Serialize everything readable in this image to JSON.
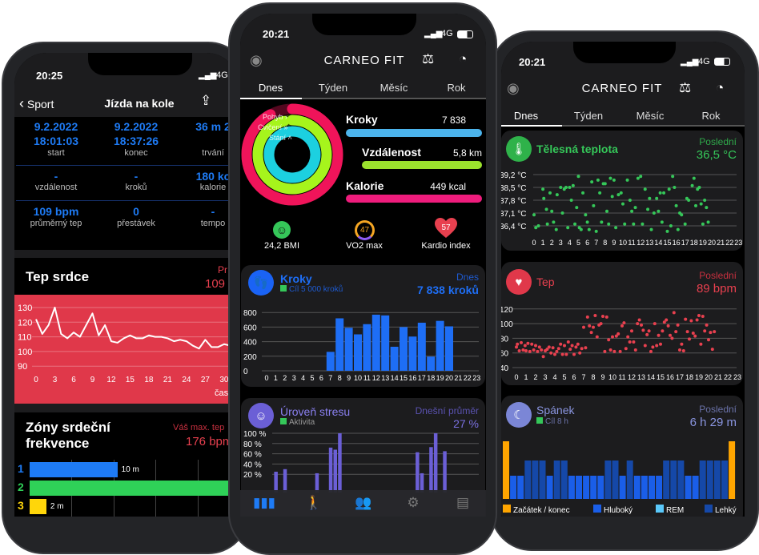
{
  "status": {
    "network": "4G"
  },
  "left_phone": {
    "time": "20:25",
    "back_label": "Sport",
    "title": "Jízda na kole",
    "stats": [
      {
        "value": "9.2.2022",
        "value2": "18:01:03",
        "label": "start"
      },
      {
        "value": "9.2.2022",
        "value2": "18:37:26",
        "label": "konec"
      },
      {
        "value": "36 m 2",
        "value2": "",
        "label": "trvání"
      },
      {
        "value": "-",
        "label": "vzdálenost"
      },
      {
        "value": "-",
        "label": "kroků"
      },
      {
        "value": "180 kc",
        "label": "kalorie"
      },
      {
        "value": "109 bpm",
        "label": "průměrný tep"
      },
      {
        "value": "0",
        "label": "přestávek"
      },
      {
        "value": "-",
        "label": "tempo"
      }
    ],
    "heart": {
      "title": "Tep srdce",
      "right_label": "Pr",
      "right_value": "109"
    },
    "zones": {
      "title1": "Zóny srdeční",
      "title2": "frekvence",
      "right_label": "Váš max. tep",
      "right_value": "176 bpm",
      "rows": [
        {
          "n": "1",
          "label": "10 m",
          "color": "#1e7bf5",
          "fraction": 0.42
        },
        {
          "n": "2",
          "label": "",
          "color": "#2fd158",
          "fraction": 1.0
        },
        {
          "n": "3",
          "label": "2 m",
          "color": "#ffd60a",
          "fraction": 0.08
        }
      ]
    }
  },
  "middle_phone": {
    "time": "20:21",
    "logo": "CARNEO FIT",
    "tabs": [
      "Dnes",
      "Týden",
      "Měsíc",
      "Rok"
    ],
    "rings": {
      "labels": [
        "Pohyb ›",
        "Cvičení »",
        "Stání ˄"
      ]
    },
    "metrics": [
      {
        "label": "Kroky",
        "value": "7 838",
        "color": "#4cb4ec"
      },
      {
        "label": "Vzdálenost",
        "value": "5,8 km",
        "color": "#9be22d"
      },
      {
        "label": "Kalorie",
        "value": "449 kcal",
        "color": "#ee1c7c"
      }
    ],
    "badges": [
      {
        "label": "24,2 BMI"
      },
      {
        "value": "47",
        "label": "VO2 max"
      },
      {
        "value": "57",
        "label": "Kardio index"
      }
    ],
    "steps_card": {
      "title": "Kroky",
      "goal": "Cíl 5 000 kroků",
      "right_label": "Dnes",
      "right_value": "7 838 kroků",
      "color": "#1e6ef5"
    },
    "stress_card": {
      "title": "Úroveň stresu",
      "legend": "Aktivita",
      "right_label": "Dnešní průměr",
      "right_value": "27 %",
      "color": "#6b5fd6"
    },
    "nav": [
      "chart-icon",
      "walking-icon",
      "friends-icon",
      "gear-icon",
      "document-icon"
    ]
  },
  "right_phone": {
    "time": "20:21",
    "logo": "CARNEO FIT",
    "tabs": [
      "Dnes",
      "Týden",
      "Měsíc",
      "Rok"
    ],
    "temp_card": {
      "title": "Tělesná teplota",
      "right_label": "Poslední",
      "right_value": "36,5 °C",
      "color": "#35c759"
    },
    "hr_card": {
      "title": "Tep",
      "right_label": "Poslední",
      "right_value": "89 bpm",
      "color": "#e8404f"
    },
    "sleep_card": {
      "title": "Spánek",
      "goal": "Cíl 8 h",
      "right_label": "Poslední",
      "right_value": "6 h 29 m",
      "color": "#8a95e0",
      "legend": [
        {
          "label": "Začátek / konec",
          "color": "#ffa500"
        },
        {
          "label": "Hluboký",
          "color": "#1a5ee8"
        },
        {
          "label": "REM",
          "color": "#5ac8fa"
        },
        {
          "label": "Lehký",
          "color": "#1548a8"
        }
      ]
    }
  },
  "chart_data": [
    {
      "id": "heart_line",
      "type": "line",
      "xlabel": "čas",
      "yticks": [
        90,
        100,
        110,
        120,
        130
      ],
      "xticks": [
        0,
        3,
        6,
        9,
        12,
        15,
        18,
        21,
        24,
        27,
        30
      ],
      "x": [
        0,
        1,
        2,
        3,
        4,
        5,
        6,
        7,
        8,
        9,
        10,
        11,
        12,
        13,
        14,
        15,
        16,
        17,
        18,
        19,
        20,
        21,
        22,
        23,
        24,
        25,
        26,
        27,
        28,
        29,
        30,
        31
      ],
      "values": [
        122,
        112,
        118,
        130,
        112,
        109,
        113,
        110,
        118,
        126,
        111,
        118,
        107,
        106,
        109,
        111,
        109,
        109,
        111,
        110,
        110,
        109,
        107,
        108,
        107,
        104,
        102,
        108,
        103,
        103,
        105,
        104
      ]
    },
    {
      "id": "steps",
      "type": "bar",
      "ylim": [
        0,
        800
      ],
      "yticks": [
        0,
        200,
        400,
        600,
        800
      ],
      "categories": [
        "0",
        "1",
        "2",
        "3",
        "4",
        "5",
        "6",
        "7",
        "8",
        "9",
        "10",
        "11",
        "12",
        "13",
        "14",
        "15",
        "16",
        "17",
        "18",
        "19",
        "20",
        "21",
        "22",
        "23"
      ],
      "values": [
        0,
        0,
        0,
        0,
        0,
        0,
        0,
        260,
        720,
        590,
        500,
        640,
        770,
        760,
        330,
        600,
        470,
        660,
        195,
        685,
        610,
        0,
        0,
        0
      ]
    },
    {
      "id": "stress",
      "type": "bar",
      "ylim": [
        0,
        100
      ],
      "yticks": [
        "20 %",
        "40 %",
        "60 %",
        "80 %",
        "100 %"
      ],
      "values": [
        0,
        0,
        25,
        0,
        30,
        0,
        0,
        0,
        0,
        0,
        0,
        22,
        0,
        0,
        72,
        68,
        100,
        0,
        0,
        0,
        0,
        0,
        0,
        0,
        0,
        0,
        0,
        0,
        0,
        0,
        0,
        0,
        0,
        63,
        22,
        0,
        73,
        100,
        0,
        65,
        0,
        0,
        0,
        0,
        0,
        0,
        0,
        0
      ]
    },
    {
      "id": "temperature",
      "type": "scatter",
      "yticks": [
        "36,4 °C",
        "37,1 °C",
        "37,8 °C",
        "38,5 °C",
        "39,2 °C"
      ],
      "ylim": [
        36.4,
        39.2
      ],
      "xticks": [
        0,
        1,
        2,
        3,
        4,
        5,
        6,
        7,
        8,
        9,
        10,
        11,
        12,
        13,
        14,
        15,
        16,
        17,
        18,
        19,
        20,
        21,
        22,
        23
      ],
      "points": [
        [
          0,
          37.0
        ],
        [
          0.2,
          36.3
        ],
        [
          0.5,
          36.4
        ],
        [
          1,
          38.4
        ],
        [
          1.1,
          37.9
        ],
        [
          1.4,
          37.3
        ],
        [
          1.5,
          36.5
        ],
        [
          1.8,
          38.2
        ],
        [
          2,
          37.2
        ],
        [
          2.2,
          36.6
        ],
        [
          2.5,
          36.2
        ],
        [
          2.6,
          38.1
        ],
        [
          3,
          38.5
        ],
        [
          3.2,
          37.1
        ],
        [
          3.4,
          38.4
        ],
        [
          3.6,
          38.5
        ],
        [
          3.8,
          36.3
        ],
        [
          4,
          38.5
        ],
        [
          4.2,
          37.8
        ],
        [
          4.4,
          38.6
        ],
        [
          4.6,
          36.5
        ],
        [
          4.8,
          37.4
        ],
        [
          5,
          39.1
        ],
        [
          5.1,
          36.3
        ],
        [
          5.3,
          36.2
        ],
        [
          5.5,
          38.2
        ],
        [
          5.8,
          37.0
        ],
        [
          6,
          36.6
        ],
        [
          6.2,
          36.2
        ],
        [
          6.5,
          38.8
        ],
        [
          6.7,
          37.5
        ],
        [
          7,
          36.1
        ],
        [
          7.2,
          38.9
        ],
        [
          7.4,
          38.2
        ],
        [
          7.6,
          36.6
        ],
        [
          7.8,
          38.7
        ],
        [
          8,
          38.7
        ],
        [
          8.2,
          37.2
        ],
        [
          8.4,
          36.5
        ],
        [
          8.6,
          39.0
        ],
        [
          8.8,
          38.0
        ],
        [
          9,
          38.9
        ],
        [
          9.2,
          36.3
        ],
        [
          9.5,
          38.1
        ],
        [
          9.8,
          38.2
        ],
        [
          10,
          37.6
        ],
        [
          10.2,
          36.5
        ],
        [
          10.5,
          38.9
        ],
        [
          10.8,
          37.8
        ],
        [
          11,
          37.2
        ],
        [
          11.2,
          36.5
        ],
        [
          11.4,
          37.4
        ],
        [
          11.7,
          39.0
        ],
        [
          12,
          39.1
        ],
        [
          12.2,
          36.5
        ],
        [
          12.5,
          38.4
        ],
        [
          12.8,
          37.3
        ],
        [
          13,
          37.9
        ],
        [
          13.2,
          36.2
        ],
        [
          13.5,
          37.1
        ],
        [
          13.8,
          37.9
        ],
        [
          14,
          37.2
        ],
        [
          14.2,
          38.2
        ],
        [
          14.4,
          36.6
        ],
        [
          14.6,
          38.2
        ],
        [
          15,
          36.1
        ],
        [
          15.2,
          38.4
        ],
        [
          15.4,
          36.4
        ],
        [
          15.6,
          39.1
        ],
        [
          15.8,
          38.5
        ],
        [
          16,
          37.5
        ],
        [
          16.2,
          36.2
        ],
        [
          16.4,
          37.1
        ],
        [
          16.6,
          37.0
        ],
        [
          17,
          36.5
        ],
        [
          17.2,
          37.9
        ],
        [
          17.4,
          37.8
        ],
        [
          17.8,
          38.6
        ],
        [
          18,
          39.0
        ],
        [
          18.2,
          37.5
        ],
        [
          18.4,
          38.4
        ],
        [
          18.6,
          38.5
        ],
        [
          18.8,
          37.6
        ],
        [
          19,
          36.5
        ],
        [
          19.2,
          37.8
        ],
        [
          19.4,
          37.4
        ],
        [
          19.6,
          36.6
        ]
      ]
    },
    {
      "id": "heart_rate",
      "type": "scatter",
      "ylim": [
        40,
        120
      ],
      "yticks": [
        40,
        60,
        80,
        100,
        120
      ],
      "xticks": [
        0,
        1,
        2,
        3,
        4,
        5,
        6,
        7,
        8,
        9,
        10,
        11,
        12,
        13,
        14,
        15,
        16,
        17,
        18,
        19,
        20,
        21,
        22,
        23
      ],
      "points": [
        [
          0,
          68
        ],
        [
          0.1,
          72
        ],
        [
          0.3,
          63
        ],
        [
          0.5,
          74
        ],
        [
          0.7,
          64
        ],
        [
          0.9,
          70
        ],
        [
          1,
          63
        ],
        [
          1.2,
          73
        ],
        [
          1.4,
          62
        ],
        [
          1.6,
          72
        ],
        [
          1.8,
          64
        ],
        [
          2,
          70
        ],
        [
          2.2,
          62
        ],
        [
          2.4,
          68
        ],
        [
          2.6,
          64
        ],
        [
          2.8,
          55
        ],
        [
          3,
          63
        ],
        [
          3.2,
          65
        ],
        [
          3.4,
          68
        ],
        [
          3.6,
          60
        ],
        [
          3.8,
          67
        ],
        [
          4,
          58
        ],
        [
          4.2,
          62
        ],
        [
          4.4,
          66
        ],
        [
          4.6,
          72
        ],
        [
          4.8,
          58
        ],
        [
          5,
          70
        ],
        [
          5.2,
          58
        ],
        [
          5.4,
          75
        ],
        [
          5.6,
          65
        ],
        [
          5.8,
          70
        ],
        [
          6,
          58
        ],
        [
          6.2,
          68
        ],
        [
          6.4,
          72
        ],
        [
          6.6,
          60
        ],
        [
          6.8,
          66
        ],
        [
          7,
          95
        ],
        [
          7.2,
          67
        ],
        [
          7.4,
          109
        ],
        [
          7.6,
          97
        ],
        [
          7.8,
          88
        ],
        [
          8,
          95
        ],
        [
          8.2,
          111
        ],
        [
          8.4,
          82
        ],
        [
          8.6,
          98
        ],
        [
          8.8,
          100
        ],
        [
          9,
          110
        ],
        [
          9.2,
          62
        ],
        [
          9.4,
          109
        ],
        [
          9.6,
          78
        ],
        [
          9.8,
          64
        ],
        [
          10,
          82
        ],
        [
          10.2,
          62
        ],
        [
          10.4,
          83
        ],
        [
          10.6,
          86
        ],
        [
          10.8,
          62
        ],
        [
          11,
          97
        ],
        [
          11.2,
          101
        ],
        [
          11.4,
          66
        ],
        [
          11.6,
          82
        ],
        [
          11.8,
          75
        ],
        [
          12,
          90
        ],
        [
          12.2,
          75
        ],
        [
          12.4,
          64
        ],
        [
          12.6,
          100
        ],
        [
          12.8,
          105
        ],
        [
          13,
          98
        ],
        [
          13.2,
          91
        ],
        [
          13.4,
          70
        ],
        [
          13.6,
          85
        ],
        [
          13.8,
          90
        ],
        [
          14,
          62
        ],
        [
          14.2,
          68
        ],
        [
          14.4,
          100
        ],
        [
          14.6,
          70
        ],
        [
          14.8,
          84
        ],
        [
          15,
          72
        ],
        [
          15.2,
          90
        ],
        [
          15.4,
          102
        ],
        [
          15.6,
          105
        ],
        [
          15.8,
          97
        ],
        [
          16,
          84
        ],
        [
          16.2,
          80
        ],
        [
          16.4,
          115
        ],
        [
          16.6,
          89
        ],
        [
          16.8,
          98
        ],
        [
          17,
          64
        ],
        [
          17.2,
          72
        ],
        [
          17.4,
          63
        ],
        [
          17.6,
          106
        ],
        [
          17.8,
          89
        ],
        [
          18,
          79
        ],
        [
          18.2,
          104
        ],
        [
          18.4,
          87
        ],
        [
          18.6,
          83
        ],
        [
          18.8,
          105
        ],
        [
          19,
          111
        ],
        [
          19.2,
          72
        ],
        [
          19.4,
          110
        ],
        [
          19.6,
          90
        ],
        [
          19.8,
          98
        ],
        [
          20,
          78
        ],
        [
          20.2,
          88
        ],
        [
          20.4,
          65
        ],
        [
          20.6,
          89
        ]
      ]
    },
    {
      "id": "sleep",
      "type": "bar",
      "categories_legend": [
        "Začátek / konec",
        "Hluboký",
        "REM",
        "Lehký"
      ],
      "stages": [
        "start",
        "deep",
        "deep",
        "light",
        "light",
        "light",
        "deep",
        "light",
        "light",
        "deep",
        "deep",
        "deep",
        "deep",
        "deep",
        "light",
        "light",
        "deep",
        "light",
        "deep",
        "deep",
        "deep",
        "deep",
        "light",
        "light",
        "light",
        "deep",
        "deep",
        "light",
        "light",
        "light",
        "light",
        "end"
      ]
    }
  ]
}
